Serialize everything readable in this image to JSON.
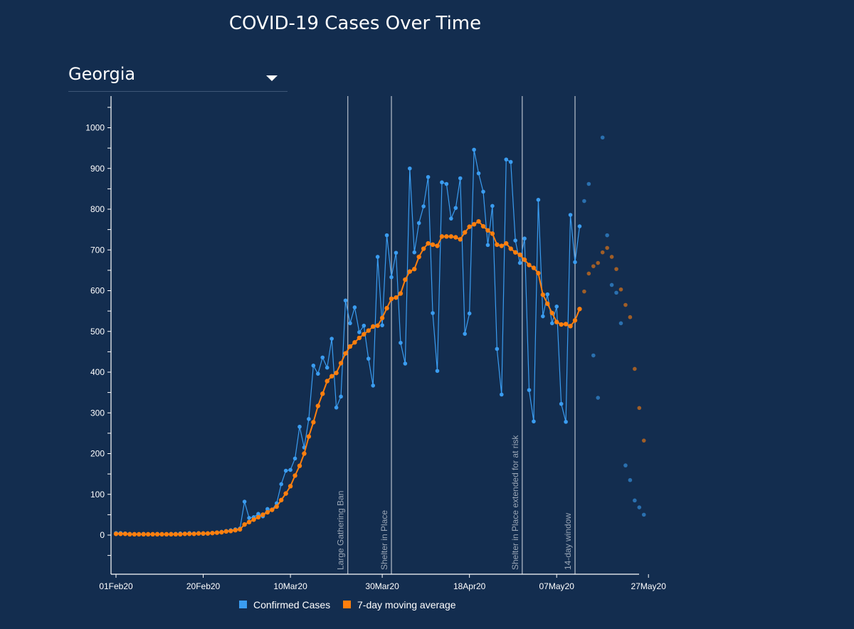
{
  "title": "COVID-19 Cases Over Time",
  "state_selector": {
    "value": "Georgia"
  },
  "colors": {
    "background": "#132d4f",
    "confirmed": "#3a9cf0",
    "average": "#ff7f0e",
    "event_line": "#b8c0cc",
    "axis": "#ffffff"
  },
  "chart_data": {
    "type": "line",
    "title": "COVID-19 Cases Over Time",
    "xlabel": "",
    "ylabel": "",
    "x_start": "01Feb20",
    "x_ticks": [
      "01Feb20",
      "20Feb20",
      "10Mar20",
      "30Mar20",
      "18Apr20",
      "07May20",
      "27May20"
    ],
    "y_ticks": [
      0,
      100,
      200,
      300,
      400,
      500,
      600,
      700,
      800,
      900,
      1000
    ],
    "ylim": [
      -95,
      1080
    ],
    "xlim": [
      "01Feb20",
      "27May20"
    ],
    "grid": false,
    "legend_position": "bottom",
    "series": [
      {
        "name": "Confirmed Cases",
        "values": [
          5,
          5,
          4,
          3,
          2,
          2,
          3,
          2,
          2,
          3,
          2,
          2,
          3,
          3,
          4,
          3,
          5,
          4,
          5,
          3,
          4,
          5,
          6,
          8,
          10,
          12,
          14,
          16,
          82,
          42,
          44,
          52,
          46,
          64,
          62,
          78,
          125,
          158,
          160,
          188,
          266,
          215,
          285,
          416,
          396,
          436,
          411,
          482,
          313,
          340,
          576,
          520,
          559,
          498,
          514,
          433,
          367,
          683,
          515,
          736,
          633,
          693,
          472,
          421,
          900,
          694,
          766,
          807,
          879,
          545,
          403,
          866,
          862,
          777,
          803,
          876,
          494,
          544,
          946,
          888,
          843,
          712,
          808,
          457,
          345,
          922,
          916,
          723,
          668,
          728,
          356,
          279,
          823,
          537,
          591,
          520,
          561,
          322,
          278,
          786,
          670,
          758
        ],
        "projection": [
          820,
          862,
          441,
          337,
          976,
          736,
          614,
          595,
          520,
          171,
          135,
          85,
          68,
          50
        ]
      },
      {
        "name": "7-day moving average",
        "values": [
          3,
          3,
          3,
          2,
          2,
          2,
          2,
          2,
          2,
          2,
          2,
          2,
          2,
          2,
          2,
          3,
          3,
          3,
          4,
          4,
          4,
          5,
          6,
          7,
          9,
          10,
          12,
          14,
          26,
          32,
          38,
          44,
          50,
          56,
          62,
          70,
          86,
          102,
          120,
          146,
          170,
          200,
          242,
          277,
          317,
          347,
          378,
          390,
          398,
          422,
          446,
          463,
          473,
          484,
          493,
          502,
          512,
          514,
          533,
          557,
          580,
          583,
          593,
          627,
          647,
          653,
          683,
          703,
          716,
          713,
          710,
          733,
          733,
          733,
          731,
          726,
          743,
          757,
          763,
          770,
          758,
          748,
          740,
          713,
          710,
          716,
          703,
          694,
          688,
          676,
          663,
          656,
          643,
          590,
          568,
          545,
          523,
          517,
          518,
          513,
          527,
          555
        ],
        "projection": [
          598,
          642,
          660,
          668,
          694,
          705,
          683,
          653,
          603,
          565,
          535,
          408,
          312,
          232
        ]
      }
    ],
    "events": [
      {
        "label": "Large Gathering Ban",
        "date": "Mar24"
      },
      {
        "label": "Shelter in Place",
        "date": "Apr03"
      },
      {
        "label": "Shelter in Place extended for at risk",
        "date": "May01"
      },
      {
        "label": "14-day window",
        "date": "May13"
      }
    ]
  },
  "legend": [
    {
      "label": "Confirmed Cases",
      "color": "#3a9cf0"
    },
    {
      "label": "7-day moving average",
      "color": "#ff7f0e"
    }
  ]
}
